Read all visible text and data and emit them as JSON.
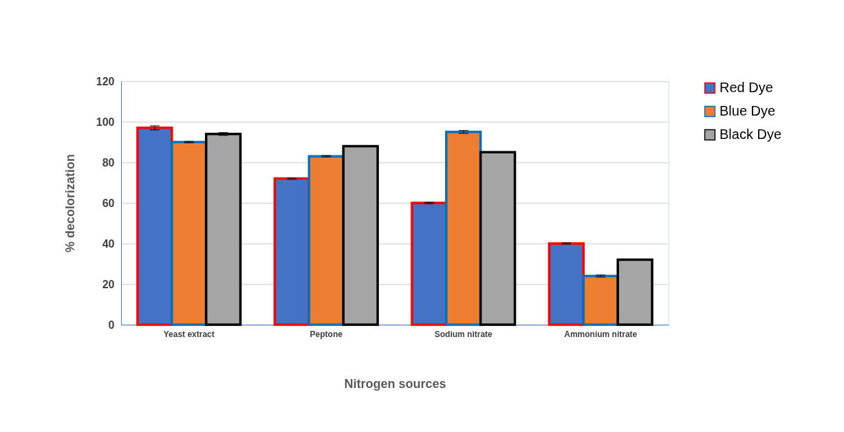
{
  "chart_data": {
    "type": "bar",
    "xlabel": "Nitrogen sources",
    "ylabel": "% decolorization",
    "categories": [
      "Yeast extract",
      "Peptone",
      "Sodium nitrate",
      "Ammonium nitrate"
    ],
    "series": [
      {
        "name": "Red Dye",
        "color": "#4472c4",
        "values": [
          97,
          72,
          60,
          40
        ],
        "errors": [
          1,
          0.3,
          0.3,
          0.3
        ]
      },
      {
        "name": "Blue Dye",
        "color": "#ed7d31",
        "values": [
          90,
          83,
          95,
          24
        ],
        "errors": [
          0.3,
          0.3,
          0.7,
          0.5
        ]
      },
      {
        "name": "Black Dye",
        "color": "#a5a5a5",
        "values": [
          94,
          88,
          85,
          32
        ],
        "errors": [
          0.7,
          null,
          null,
          null
        ]
      }
    ],
    "ylim": [
      0,
      120
    ],
    "yticks": [
      0,
      20,
      40,
      60,
      80,
      100,
      120
    ],
    "grid": "y",
    "legend": "right"
  }
}
